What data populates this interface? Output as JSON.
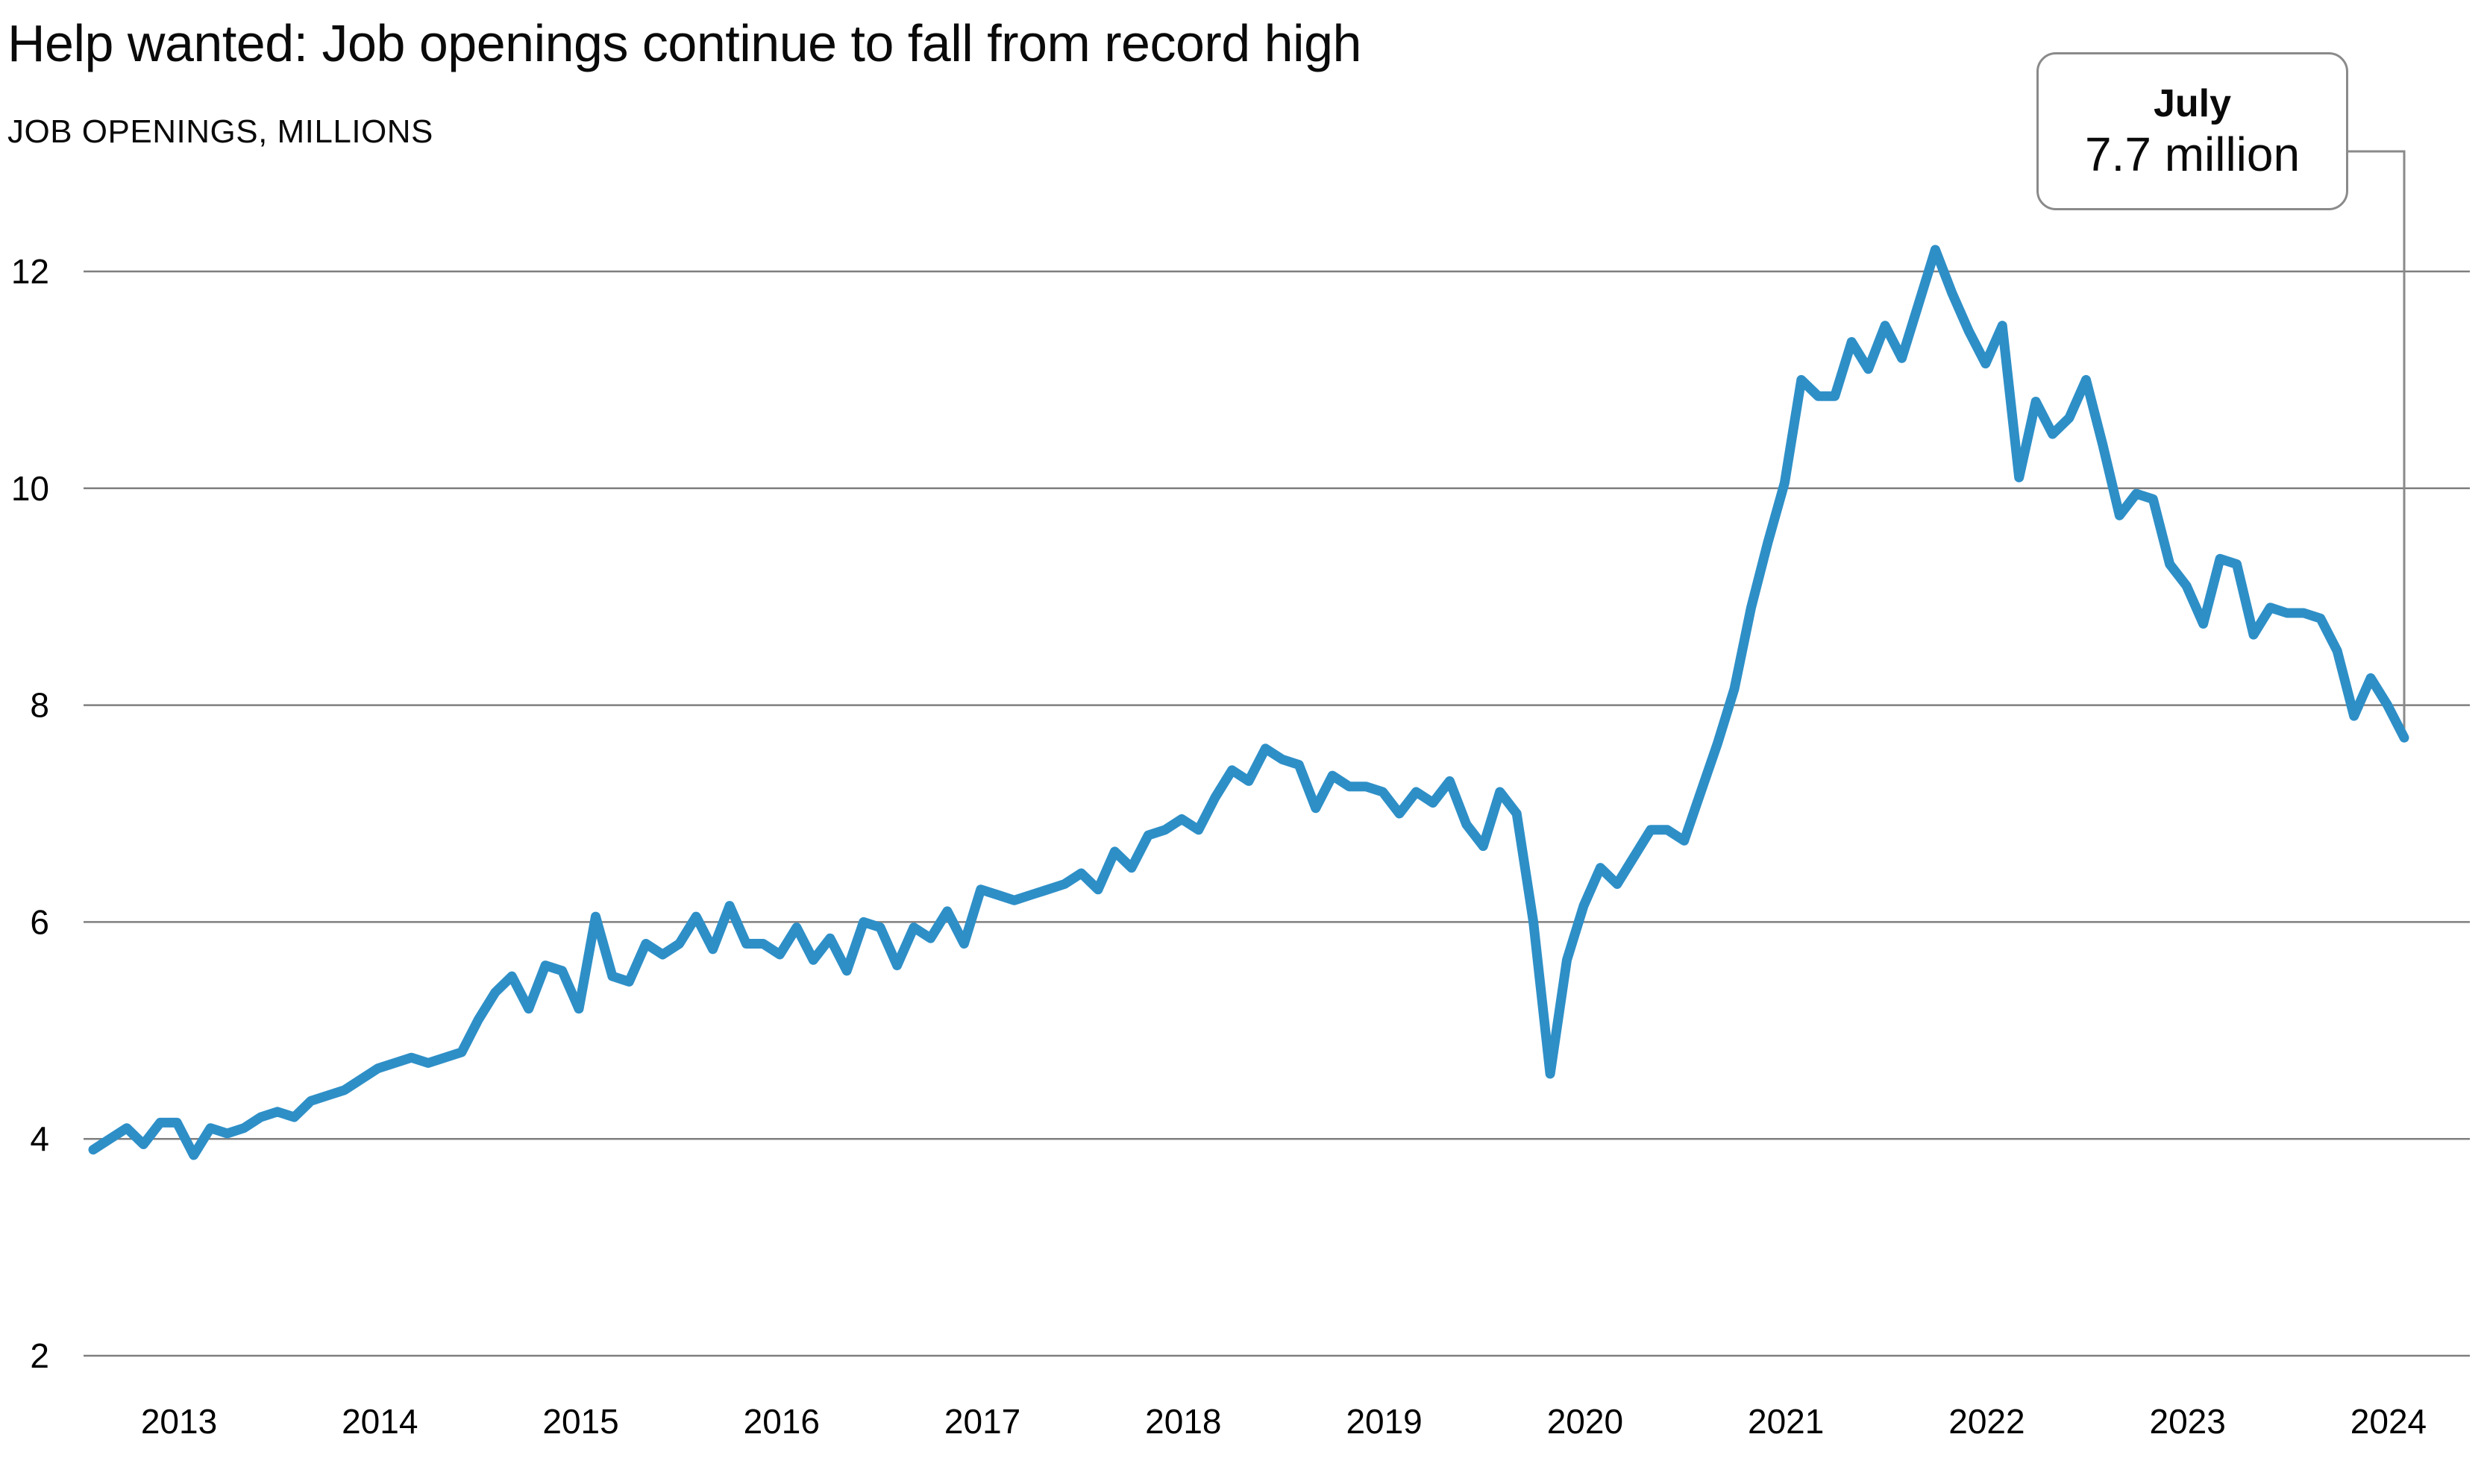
{
  "chart_data": {
    "type": "line",
    "title": "Help wanted: Job openings continue to fall from record high",
    "subtitle": "JOB OPENINGS, MILLIONS",
    "unit": "millions of job openings, monthly",
    "x_start": "2013-01",
    "x_end": "2024-07",
    "frequency": "monthly",
    "x_tick_labels": [
      "2013",
      "2014",
      "2015",
      "2016",
      "2017",
      "2018",
      "2019",
      "2020",
      "2021",
      "2022",
      "2023",
      "2024"
    ],
    "y_ticks": [
      12,
      10,
      8,
      6,
      4,
      2
    ],
    "ylim": [
      2,
      12.6
    ],
    "grid": "horizontal-only",
    "legend": "none",
    "series": [
      {
        "name": "Job openings",
        "values": [
          3.9,
          4.0,
          4.1,
          3.95,
          4.15,
          4.15,
          3.85,
          4.1,
          4.05,
          4.1,
          4.2,
          4.25,
          4.2,
          4.35,
          4.4,
          4.45,
          4.55,
          4.65,
          4.7,
          4.75,
          4.7,
          4.75,
          4.8,
          5.1,
          5.35,
          5.5,
          5.2,
          5.6,
          5.55,
          5.2,
          6.05,
          5.5,
          5.45,
          5.8,
          5.7,
          5.8,
          6.05,
          5.75,
          6.15,
          5.8,
          5.8,
          5.7,
          5.95,
          5.65,
          5.85,
          5.55,
          6.0,
          5.95,
          5.6,
          5.95,
          5.85,
          6.1,
          5.8,
          6.3,
          6.25,
          6.2,
          6.25,
          6.3,
          6.35,
          6.45,
          6.3,
          6.65,
          6.5,
          6.8,
          6.85,
          6.95,
          6.85,
          7.15,
          7.4,
          7.3,
          7.6,
          7.5,
          7.45,
          7.05,
          7.35,
          7.25,
          7.25,
          7.2,
          7.0,
          7.2,
          7.1,
          7.3,
          6.9,
          6.7,
          7.2,
          7.0,
          6.0,
          4.6,
          5.65,
          6.15,
          6.5,
          6.35,
          6.6,
          6.85,
          6.85,
          6.75,
          7.2,
          7.65,
          8.15,
          8.9,
          9.5,
          10.05,
          11.0,
          10.85,
          10.85,
          11.35,
          11.1,
          11.5,
          11.2,
          11.7,
          12.2,
          11.8,
          11.45,
          11.15,
          11.5,
          10.1,
          10.8,
          10.5,
          10.65,
          11.0,
          10.4,
          9.75,
          9.95,
          9.9,
          9.3,
          9.1,
          8.75,
          9.35,
          9.3,
          8.65,
          8.9,
          8.85,
          8.85,
          8.8,
          8.5,
          7.9,
          8.25,
          8.0,
          7.7
        ]
      }
    ],
    "callout": {
      "label": "July",
      "value": "7.7 million"
    },
    "colors": {
      "line": "#2E8FC7",
      "grid": "#7F7F7F",
      "callout_border": "#8A8A8A",
      "text": "#000000"
    }
  }
}
